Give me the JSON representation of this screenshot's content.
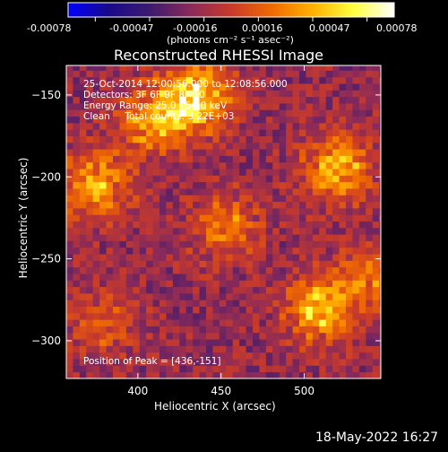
{
  "colorbar": {
    "tick_labels": [
      "-0.00078",
      "-0.00047",
      "-0.00016",
      "0.00016",
      "0.00047",
      "0.00078"
    ],
    "unit_label": "(photons cm⁻² s⁻¹ asec⁻²)",
    "range": [
      -0.00078,
      0.00078
    ],
    "colors": [
      "#0000ff",
      "#1a0a8a",
      "#3c1a6e",
      "#8a2a5a",
      "#c83a2a",
      "#f06a00",
      "#ffb200",
      "#ffff40",
      "#ffffff"
    ]
  },
  "annotations": {
    "time_range": "25-Oct-2014 12:00:56.000 to 12:08:56.000",
    "detectors": "Detectors: 3F 6F 9F 8F 10",
    "energy": "Energy Range: 25.0 - 50.0 keV",
    "method": "Clean     Total counts: 3.22E+03",
    "peak": "Position of Peak = [436,-151]"
  },
  "footer": {
    "date": "18-May-2022 16:27"
  },
  "chart_data": {
    "type": "heatmap",
    "title": "Reconstructed RHESSI Image",
    "xlabel": "Heliocentric X (arcsec)",
    "ylabel": "Heliocentric Y (arcsec)",
    "xlim": [
      357,
      546
    ],
    "ylim": [
      -323,
      -132
    ],
    "xticks": [
      400,
      450,
      500
    ],
    "yticks": [
      -150,
      -200,
      -250,
      -300
    ],
    "cell_size_arcsec": 4,
    "sources": [
      {
        "x": 436,
        "y": -151,
        "peak": 0.00078
      },
      {
        "x": 410,
        "y": -165,
        "peak": 0.0006
      },
      {
        "x": 375,
        "y": -205,
        "peak": 0.00058
      },
      {
        "x": 452,
        "y": -230,
        "peak": 0.00042
      },
      {
        "x": 520,
        "y": -195,
        "peak": 0.00062
      },
      {
        "x": 510,
        "y": -280,
        "peak": 0.00066
      },
      {
        "x": 380,
        "y": -290,
        "peak": 0.0003
      },
      {
        "x": 540,
        "y": -260,
        "peak": 0.0004
      }
    ],
    "background": -0.00016
  }
}
